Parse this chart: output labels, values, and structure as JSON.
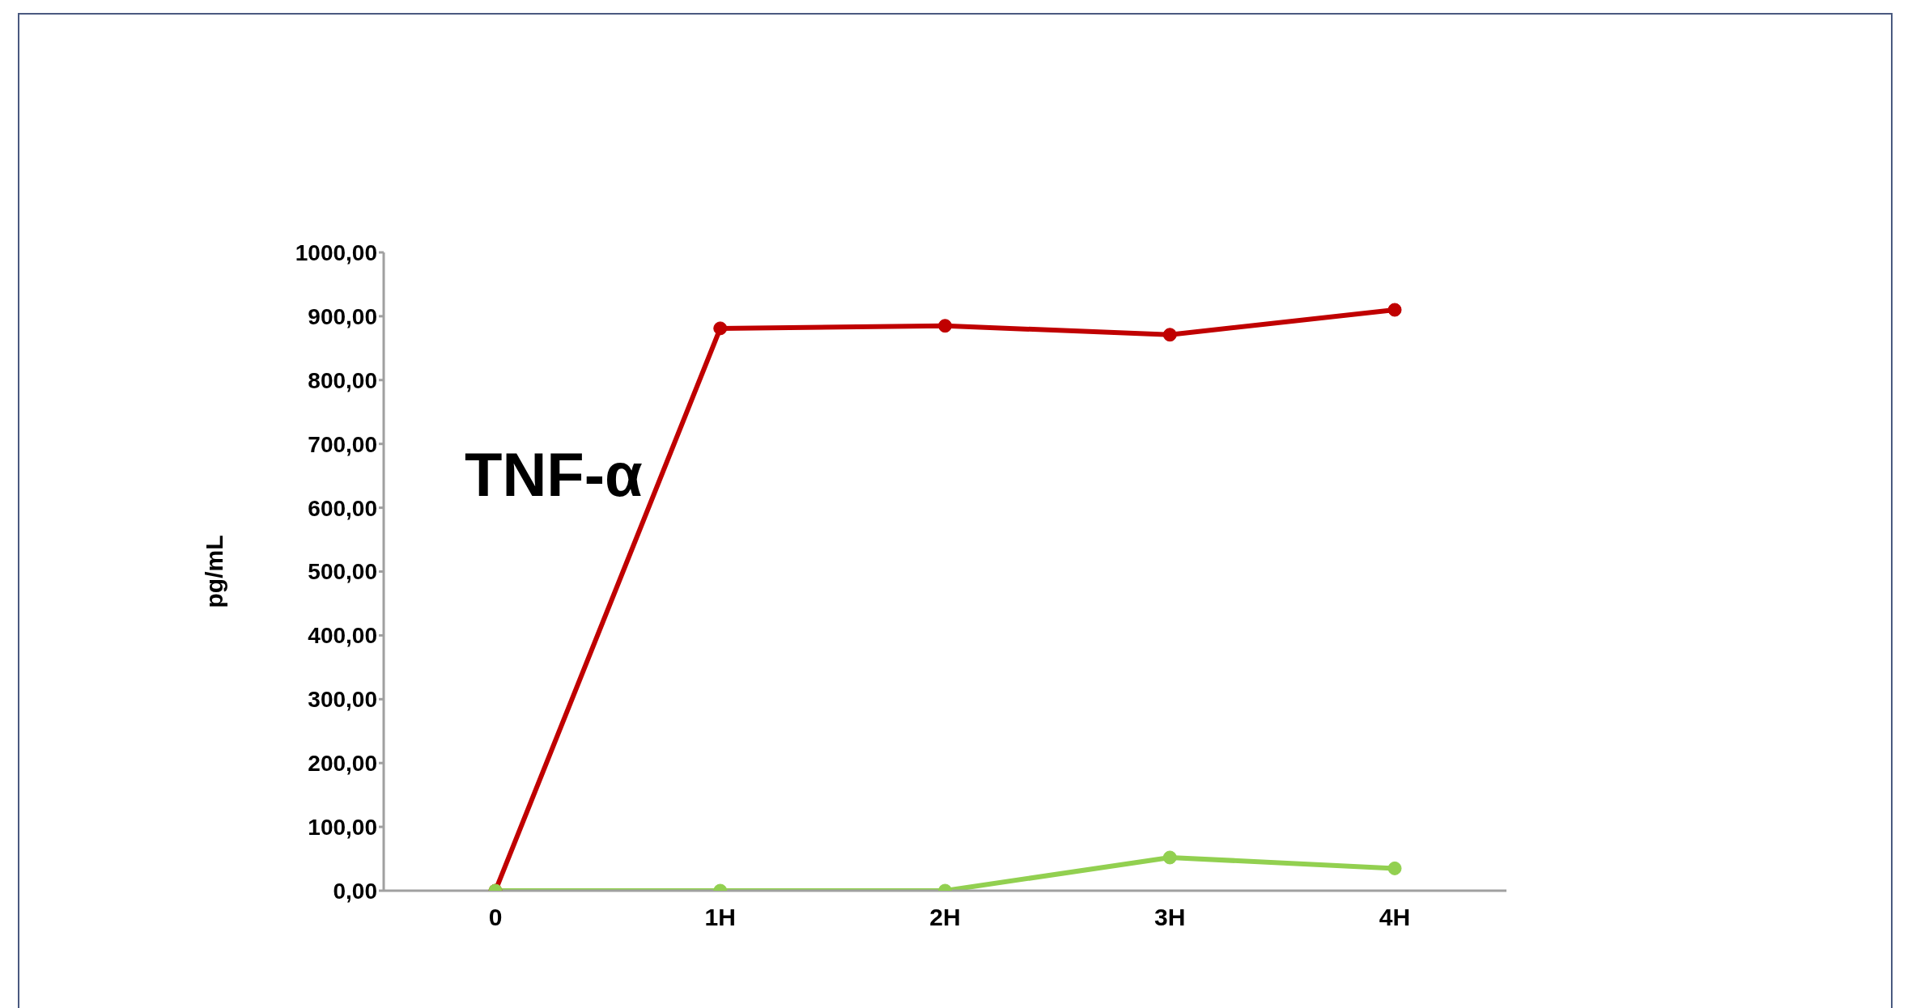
{
  "chart_data": {
    "type": "line",
    "title": "TNF-α",
    "ylabel": "pg/mL",
    "categories": [
      "0",
      "1H",
      "2H",
      "3H",
      "4H"
    ],
    "series": [
      {
        "color": "#c00000",
        "values": [
          0,
          881,
          885,
          871,
          910
        ]
      },
      {
        "color": "#92d050",
        "values": [
          0,
          0,
          0,
          52,
          35
        ]
      }
    ],
    "ylim": [
      0,
      1000
    ],
    "yticks": [
      {
        "value": 0,
        "label": "0,00"
      },
      {
        "value": 100,
        "label": "100,00"
      },
      {
        "value": 200,
        "label": "200,00"
      },
      {
        "value": 300,
        "label": "300,00"
      },
      {
        "value": 400,
        "label": "400,00"
      },
      {
        "value": 500,
        "label": "500,00"
      },
      {
        "value": 600,
        "label": "600,00"
      },
      {
        "value": 700,
        "label": "700,00"
      },
      {
        "value": 800,
        "label": "800,00"
      },
      {
        "value": 900,
        "label": "900,00"
      },
      {
        "value": 1000,
        "label": "1000,00"
      }
    ],
    "grid": false,
    "legend": false,
    "marker": "circle",
    "line_style": "solid"
  }
}
